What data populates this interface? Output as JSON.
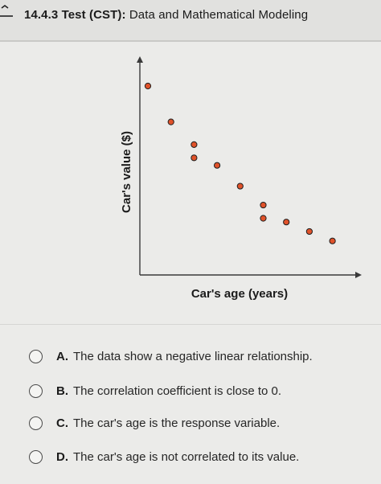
{
  "header": {
    "code": "14.4.3 Test (CST):",
    "title": "Data and Mathematical Modeling"
  },
  "chart_data": {
    "type": "scatter",
    "xlabel": "Car's age (years)",
    "ylabel": "Car's value ($)",
    "x": [
      1,
      2,
      3,
      3,
      4,
      5,
      6,
      6,
      7,
      8,
      9
    ],
    "y": [
      10,
      8.1,
      6.9,
      6.2,
      5.8,
      4.7,
      3.7,
      3.0,
      2.8,
      2.3,
      1.8
    ],
    "marker_color": "#e0522a",
    "xlim": [
      0,
      10
    ],
    "ylim": [
      0,
      11
    ]
  },
  "options": [
    {
      "letter": "A.",
      "text": "The data show a negative linear relationship."
    },
    {
      "letter": "B.",
      "text": "The correlation coefficient is close to 0."
    },
    {
      "letter": "C.",
      "text": "The car's age is the response variable."
    },
    {
      "letter": "D.",
      "text": "The car's age is not correlated to its value."
    }
  ]
}
